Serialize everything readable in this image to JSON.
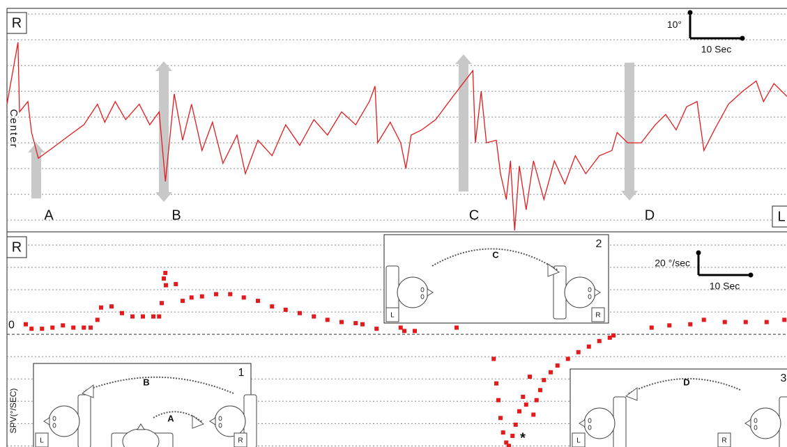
{
  "chart_data": [
    {
      "type": "line",
      "corner_labels": {
        "top_left": "R",
        "bottom_right": "L"
      },
      "yticks": [
        {
          "value": 0,
          "label": "Center"
        }
      ],
      "grid_lines": [
        50,
        40,
        30,
        20,
        10,
        0,
        -10,
        -20,
        -30
      ],
      "xlim": [
        0,
        149.2
      ],
      "ylim": [
        -34.3,
        52.2
      ],
      "color": "#e41a1c",
      "arrow_labels": [
        "A",
        "B",
        "C",
        "D"
      ],
      "scale_bar": {
        "y": 10,
        "y_label": "10°",
        "x": 10,
        "x_label": "10 Sec"
      },
      "x": [
        0,
        2.1,
        2.4,
        4,
        4.7,
        6,
        8.7,
        12,
        14.7,
        17.3,
        18.7,
        20.7,
        22.7,
        25.3,
        27.3,
        29.1,
        30.3,
        31.1,
        32,
        33.6,
        35.3,
        37.3,
        39.3,
        41.3,
        44,
        45.6,
        48,
        50.7,
        53.3,
        56,
        58.7,
        61.3,
        64,
        66.7,
        69.3,
        70.4,
        70.9,
        73.3,
        75.3,
        76.3,
        77.3,
        79.3,
        82,
        85.3,
        89.1,
        89.6,
        90.7,
        91.7,
        93.6,
        94.4,
        95.5,
        96.3,
        97.1,
        98,
        99.3,
        100.7,
        102.7,
        104.7,
        106.7,
        108.7,
        110.7,
        113.3,
        115.7,
        116.7,
        118.7,
        121.3,
        124,
        126,
        128,
        130,
        132,
        133.3,
        135.3,
        138,
        140.7,
        143.3,
        144.7,
        146.7,
        149.2
      ],
      "values": [
        15,
        39,
        12,
        16,
        4,
        -6,
        -2,
        3,
        7,
        15,
        8,
        16,
        9,
        15,
        7,
        12,
        -15,
        1,
        19,
        1,
        15,
        -3,
        8,
        -8,
        3,
        -12,
        1,
        -5,
        7,
        -1,
        9,
        3,
        12,
        7,
        16,
        22,
        0,
        8,
        0,
        -10,
        3,
        5,
        9,
        18,
        28,
        0,
        20,
        0,
        1,
        -12,
        -22,
        -7,
        -34,
        -9,
        -26,
        -7,
        -22,
        -7,
        -16,
        -5,
        -12,
        -5,
        -3,
        4,
        0,
        0,
        7,
        11,
        5,
        14,
        16,
        -3,
        5,
        15,
        20,
        24,
        16,
        23,
        18
      ]
    },
    {
      "type": "scatter",
      "corner_labels": {
        "top_left": "R"
      },
      "y_label": "SPV(°/SEC)",
      "yticks": [
        0
      ],
      "grid_lines": [
        80,
        60,
        40,
        20,
        0,
        -20,
        -40,
        -60,
        -80,
        -100
      ],
      "xlim": [
        0,
        149.2
      ],
      "ylim": [
        -101,
        90.6
      ],
      "color": "#e41a1c",
      "scale_bar": {
        "y": 20,
        "y_label": "20 °/sec",
        "x": 10,
        "x_label": "10 Sec"
      },
      "x": [
        3.6,
        4.7,
        6.7,
        8.7,
        10.7,
        12.7,
        14.7,
        16,
        17.3,
        18,
        20,
        22,
        24,
        26,
        28,
        29.1,
        29.6,
        30,
        30.3,
        30.4,
        32.3,
        33.6,
        35.3,
        37.3,
        40,
        42.7,
        45.3,
        48,
        50.7,
        53.3,
        56,
        58.7,
        61.3,
        64,
        66.7,
        68,
        70.7,
        75.3,
        76,
        78,
        86,
        93.1,
        93.6,
        94,
        94.4,
        94.9,
        95.5,
        96,
        96.7,
        97.3,
        98,
        98.7,
        99.3,
        100,
        100.7,
        101.3,
        102,
        102.7,
        104,
        105.3,
        107.3,
        109.3,
        111.3,
        113.3,
        115.3,
        116,
        123.3,
        126.7,
        130.7,
        133.3,
        137.3,
        141.3,
        145.3,
        148.7
      ],
      "values": [
        9,
        5,
        5,
        6,
        8,
        6,
        6,
        6,
        13,
        24,
        25,
        19,
        16,
        16,
        16,
        16,
        28,
        50,
        55,
        44,
        45,
        30,
        33,
        34,
        36,
        36,
        33,
        30,
        25,
        22,
        19,
        16,
        13,
        11,
        10,
        9,
        5,
        6,
        3,
        3,
        6,
        -22,
        -44,
        -59,
        -75,
        -88,
        -97,
        -100,
        -91,
        -81,
        -69,
        -56,
        -63,
        -38,
        -72,
        -59,
        -50,
        -41,
        -34,
        -28,
        -22,
        -16,
        -11,
        -6,
        -3,
        -1,
        6,
        8,
        9,
        13,
        11,
        11,
        11,
        13
      ]
    }
  ],
  "insets": [
    {
      "number": "1",
      "motions": [
        "B",
        "A"
      ],
      "left": "L",
      "right": "R"
    },
    {
      "number": "2",
      "motions": [
        "C"
      ],
      "left": "L",
      "right": "R"
    },
    {
      "number": "3",
      "motions": [
        "D"
      ],
      "left": "L",
      "right": "R"
    }
  ]
}
